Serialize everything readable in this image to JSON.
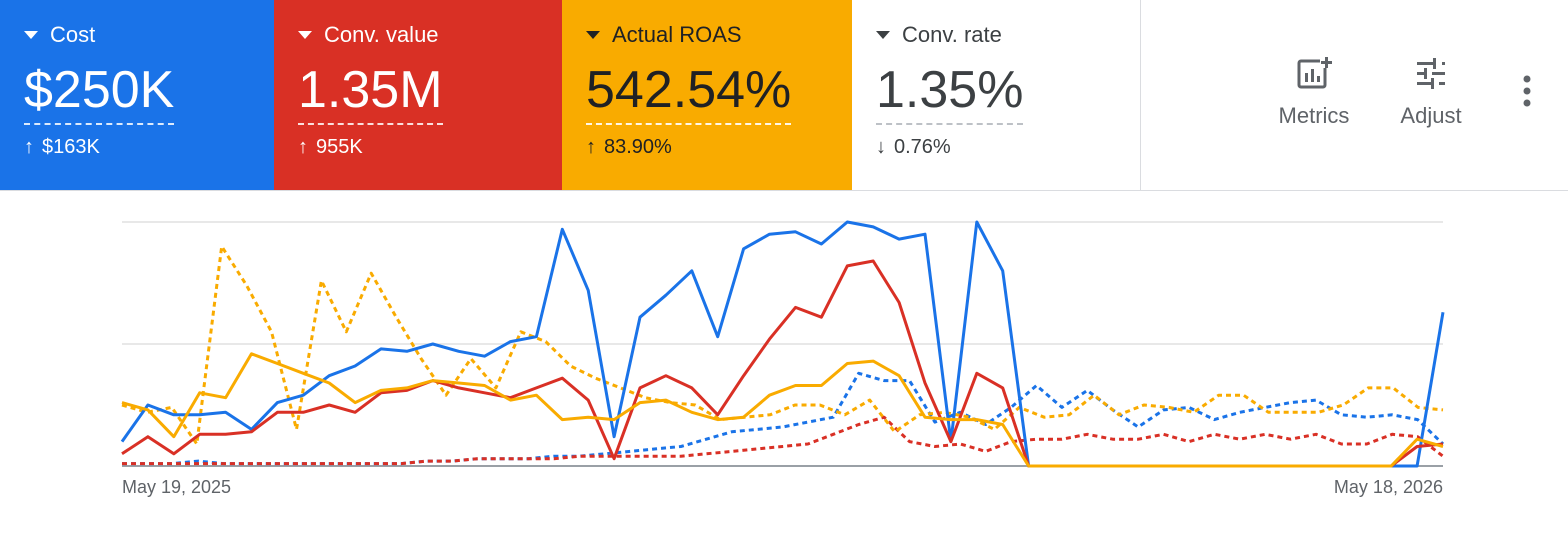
{
  "scorecards": [
    {
      "name": "Cost",
      "value": "$250K",
      "delta": "$163K",
      "direction": "up",
      "color": "#1a73e8"
    },
    {
      "name": "Conv. value",
      "value": "1.35M",
      "delta": "955K",
      "direction": "up",
      "color": "#d93025"
    },
    {
      "name": "Actual ROAS",
      "value": "542.54%",
      "delta": "83.90%",
      "direction": "up",
      "color": "#f9ab00"
    },
    {
      "name": "Conv. rate",
      "value": "1.35%",
      "delta": "0.76%",
      "direction": "down",
      "color": "#ffffff"
    }
  ],
  "toolbar": {
    "metrics_label": "Metrics",
    "adjust_label": "Adjust",
    "more_icon": "more-vert-icon"
  },
  "chart_data": {
    "type": "line",
    "x_tick_labels": [
      "May 19, 2025",
      "May 18, 2026"
    ],
    "ylim": [
      0,
      100
    ],
    "grid": true,
    "series": [
      {
        "color": "#1a73e8",
        "style": "solid",
        "values": [
          10,
          25,
          21,
          21,
          22,
          15,
          26,
          29,
          37,
          41,
          48,
          47,
          50,
          47,
          45,
          51,
          53,
          97,
          72,
          12,
          61,
          70,
          80,
          53,
          89,
          95,
          96,
          91,
          100,
          98,
          93,
          95,
          10,
          100,
          80,
          0,
          0,
          0,
          0,
          0,
          0,
          0,
          0,
          0,
          0,
          0,
          0,
          0,
          0,
          0,
          0,
          63
        ]
      },
      {
        "color": "#d93025",
        "style": "solid",
        "values": [
          5,
          12,
          5,
          13,
          13,
          14,
          22,
          22,
          25,
          22,
          30,
          31,
          35,
          32,
          30,
          28,
          32,
          36,
          27,
          3,
          32,
          37,
          32,
          21,
          37,
          52,
          65,
          61,
          82,
          84,
          67,
          34,
          10,
          38,
          32,
          0,
          0,
          0,
          0,
          0,
          0,
          0,
          0,
          0,
          0,
          0,
          0,
          0,
          0,
          0,
          8,
          9
        ]
      },
      {
        "color": "#f9ab00",
        "style": "solid",
        "values": [
          26,
          23,
          12,
          30,
          28,
          46,
          42,
          38,
          34,
          26,
          31,
          32,
          35,
          34,
          33,
          27,
          29,
          19,
          20,
          19,
          26,
          27,
          22,
          19,
          20,
          29,
          33,
          33,
          42,
          43,
          37,
          20,
          19,
          19,
          17,
          0,
          0,
          0,
          0,
          0,
          0,
          0,
          0,
          0,
          0,
          0,
          0,
          0,
          0,
          0,
          11,
          8
        ]
      },
      {
        "color": "#1a73e8",
        "style": "dashed",
        "values": [
          1,
          1,
          1,
          2,
          1,
          1,
          1,
          1,
          1,
          1,
          1,
          1,
          2,
          2,
          3,
          3,
          3,
          4,
          4,
          5,
          6,
          7,
          8,
          11,
          14,
          15,
          16,
          18,
          20,
          38,
          35,
          35,
          18,
          22,
          17,
          24,
          33,
          24,
          31,
          23,
          16,
          23,
          24,
          19,
          22,
          24,
          26,
          27,
          21,
          20,
          21,
          19,
          9
        ]
      },
      {
        "color": "#d93025",
        "style": "dashed",
        "values": [
          1,
          1,
          1,
          1,
          1,
          1,
          1,
          1,
          1,
          1,
          1,
          1,
          2,
          2,
          3,
          3,
          3,
          3,
          4,
          4,
          4,
          4,
          4,
          5,
          6,
          7,
          8,
          9,
          13,
          17,
          20,
          10,
          8,
          9,
          6,
          10,
          11,
          11,
          13,
          11,
          11,
          13,
          10,
          13,
          11,
          13,
          11,
          13,
          9,
          9,
          13,
          12,
          4
        ]
      },
      {
        "color": "#f9ab00",
        "style": "dashed",
        "values": [
          25,
          22,
          24,
          9,
          90,
          74,
          55,
          15,
          76,
          55,
          79,
          61,
          44,
          29,
          44,
          32,
          55,
          51,
          41,
          36,
          32,
          28,
          26,
          25,
          19,
          20,
          21,
          25,
          25,
          21,
          27,
          14,
          21,
          22,
          20,
          15,
          24,
          20,
          21,
          29,
          21,
          25,
          24,
          22,
          29,
          29,
          22,
          22,
          22,
          25,
          32,
          32,
          24,
          23
        ]
      }
    ]
  }
}
